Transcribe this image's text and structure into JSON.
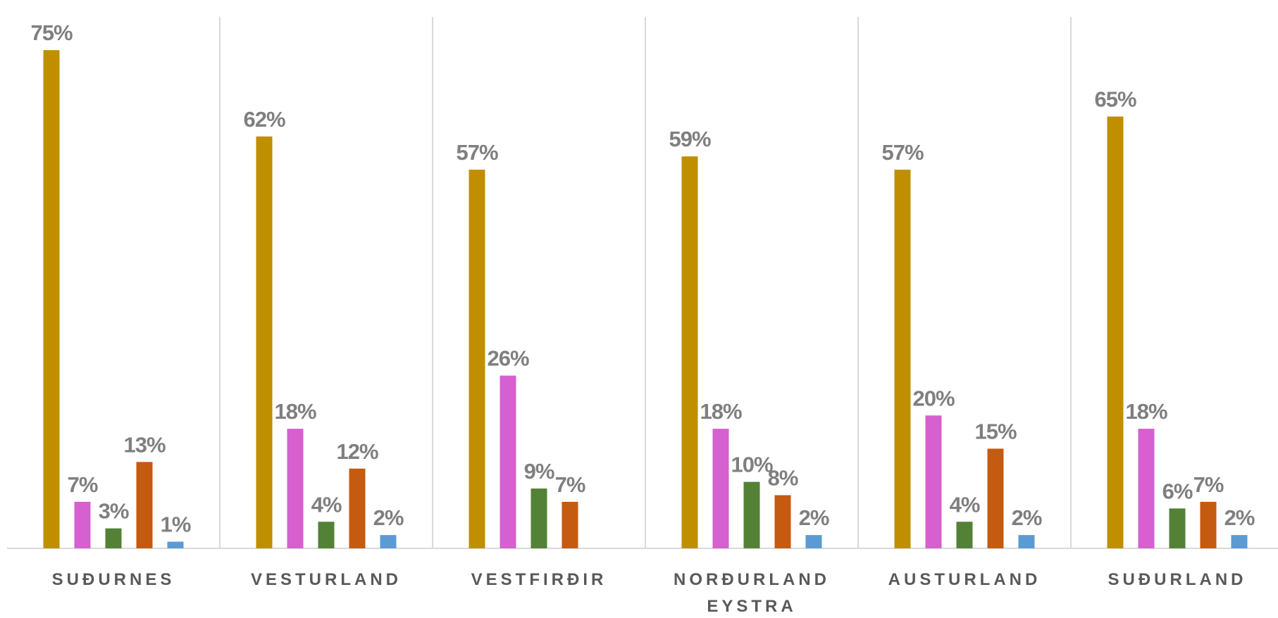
{
  "chart_data": {
    "type": "bar",
    "categories": [
      "SUÐURNES",
      "VESTURLAND",
      "VESTFIRÐIR",
      "NORÐURLAND EYSTRA",
      "AUSTURLAND",
      "SUÐURLAND"
    ],
    "series": [
      {
        "color": "#bf8f00",
        "values": [
          75,
          62,
          57,
          59,
          57,
          65
        ],
        "value_labels": [
          "75%",
          "62%",
          "57%",
          "59%",
          "57%",
          "65%"
        ]
      },
      {
        "color": "#d660d0",
        "values": [
          7,
          18,
          26,
          18,
          20,
          18
        ],
        "value_labels": [
          "7%",
          "18%",
          "26%",
          "18%",
          "20%",
          "18%"
        ]
      },
      {
        "color": "#538135",
        "values": [
          3,
          4,
          9,
          10,
          4,
          6
        ],
        "value_labels": [
          "3%",
          "4%",
          "9%",
          "10%",
          "4%",
          "6%"
        ]
      },
      {
        "color": "#c55a11",
        "values": [
          13,
          12,
          7,
          8,
          15,
          7
        ],
        "value_labels": [
          "13%",
          "12%",
          "7%",
          "8%",
          "15%",
          "7%"
        ]
      },
      {
        "color": "#5b9bd5",
        "values": [
          1,
          2,
          null,
          2,
          2,
          2
        ],
        "value_labels": [
          "1%",
          "2%",
          null,
          "2%",
          "2%",
          "2%"
        ]
      }
    ],
    "ylim": [
      0,
      80
    ]
  }
}
